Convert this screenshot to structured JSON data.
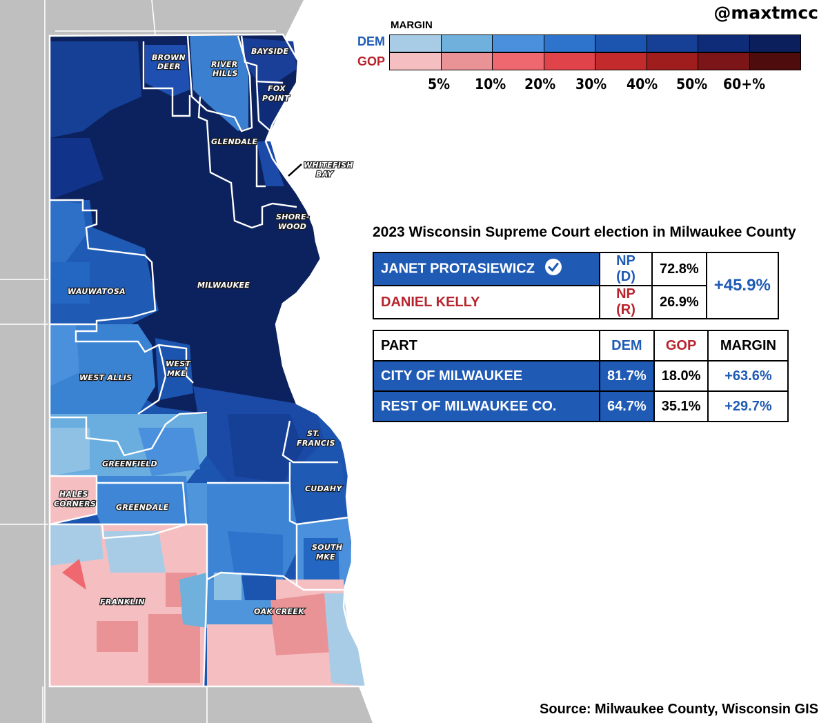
{
  "handle": "@maxtmcc",
  "legend": {
    "title": "MARGIN",
    "dem_label": "DEM",
    "gop_label": "GOP",
    "ticks": [
      "5%",
      "10%",
      "20%",
      "30%",
      "40%",
      "50%",
      "60+%"
    ],
    "dem_colors": [
      "#a9cce6",
      "#6fb0dd",
      "#4a90dc",
      "#2e74cc",
      "#1c55b0",
      "#163f96",
      "#0f2c78",
      "#0b1f5c"
    ],
    "gop_colors": [
      "#f5bfc2",
      "#ea9396",
      "#f0686f",
      "#e0434a",
      "#c32a2c",
      "#a01d1e",
      "#7b1517",
      "#4e0c0d"
    ]
  },
  "map": {
    "municipalities": [
      "BROWN DEER",
      "RIVER HILLS",
      "BAYSIDE",
      "FOX POINT",
      "GLENDALE",
      "WHITEFISH BAY",
      "SHORE-WOOD",
      "MILWAUKEE",
      "WAUWATOSA",
      "WEST MKE",
      "WEST ALLIS",
      "ST. FRANCIS",
      "GREENFIELD",
      "CUDAHY",
      "HALES CORNERS",
      "GREENDALE",
      "SOUTH MKE",
      "FRANKLIN",
      "OAK CREEK"
    ],
    "labels": {
      "brown_deer": [
        "BROWN",
        "DEER"
      ],
      "river_hills": [
        "RIVER",
        "HILLS"
      ],
      "bayside": "BAYSIDE",
      "fox_point": [
        "FOX",
        "POINT"
      ],
      "glendale": "GLENDALE",
      "whitefish_bay": [
        "WHITEFISH",
        "BAY"
      ],
      "shorewood": [
        "SHORE-",
        "WOOD"
      ],
      "milwaukee": "MILWAUKEE",
      "wauwatosa": "WAUWATOSA",
      "west_mke": [
        "WEST",
        "MKE"
      ],
      "west_allis": "WEST ALLIS",
      "st_francis": [
        "ST.",
        "FRANCIS"
      ],
      "greenfield": "GREENFIELD",
      "cudahy": "CUDAHY",
      "hales_corners": [
        "HALES",
        "CORNERS"
      ],
      "greendale": "GREENDALE",
      "south_mke": [
        "SOUTH",
        "MKE"
      ],
      "franklin": "FRANKLIN",
      "oak_creek": "OAK CREEK"
    }
  },
  "title": "2023 Wisconsin Supreme Court election in Milwaukee County",
  "results": {
    "winner_name": "JANET PROTASIEWICZ",
    "winner_party": "NP (D)",
    "winner_pct": "72.8%",
    "loser_name": "DANIEL KELLY",
    "loser_party": "NP (R)",
    "loser_pct": "26.9%",
    "margin": "+45.9%"
  },
  "parts": {
    "headers": {
      "part": "PART",
      "dem": "DEM",
      "gop": "GOP",
      "margin": "MARGIN"
    },
    "rows": [
      {
        "name": "CITY OF MILWAUKEE",
        "dem": "81.7%",
        "gop": "18.0%",
        "margin": "+63.6%"
      },
      {
        "name": "REST OF MILWAUKEE CO.",
        "dem": "64.7%",
        "gop": "35.1%",
        "margin": "+29.7%"
      }
    ]
  },
  "source": "Source: Milwaukee County, Wisconsin GIS"
}
